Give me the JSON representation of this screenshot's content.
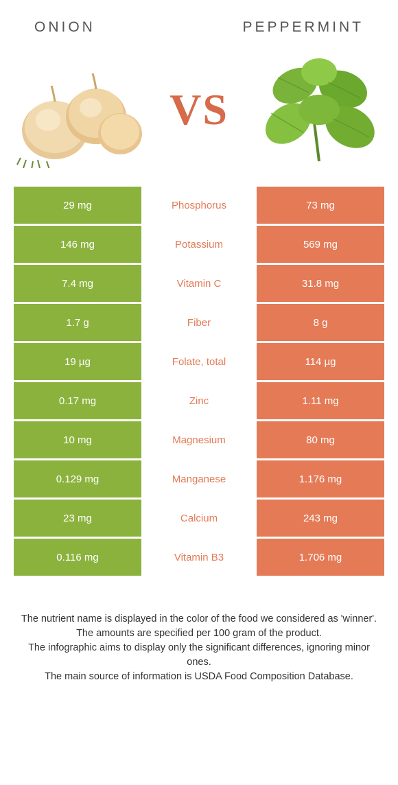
{
  "colors": {
    "left": "#8cb23e",
    "right": "#e47a56",
    "vs": "#d66a4a",
    "label_left_win": "#8cb23e",
    "label_right_win": "#e47a56"
  },
  "header": {
    "left": "ONION",
    "right": "PEPPERMINT"
  },
  "vs": "VS",
  "rows": [
    {
      "left": "29 mg",
      "label": "Phosphorus",
      "right": "73 mg",
      "winner": "right"
    },
    {
      "left": "146 mg",
      "label": "Potassium",
      "right": "569 mg",
      "winner": "right"
    },
    {
      "left": "7.4 mg",
      "label": "Vitamin C",
      "right": "31.8 mg",
      "winner": "right"
    },
    {
      "left": "1.7 g",
      "label": "Fiber",
      "right": "8 g",
      "winner": "right"
    },
    {
      "left": "19 µg",
      "label": "Folate, total",
      "right": "114 µg",
      "winner": "right"
    },
    {
      "left": "0.17 mg",
      "label": "Zinc",
      "right": "1.11 mg",
      "winner": "right"
    },
    {
      "left": "10 mg",
      "label": "Magnesium",
      "right": "80 mg",
      "winner": "right"
    },
    {
      "left": "0.129 mg",
      "label": "Manganese",
      "right": "1.176 mg",
      "winner": "right"
    },
    {
      "left": "23 mg",
      "label": "Calcium",
      "right": "243 mg",
      "winner": "right"
    },
    {
      "left": "0.116 mg",
      "label": "Vitamin B3",
      "right": "1.706 mg",
      "winner": "right"
    }
  ],
  "footer": {
    "line1": "The nutrient name is displayed in the color of the food we considered as 'winner'.",
    "line2": "The amounts are specified per 100 gram of the product.",
    "line3": "The infographic aims to display only the significant differences, ignoring minor ones.",
    "line4": "The main source of information is USDA Food Composition Database."
  }
}
